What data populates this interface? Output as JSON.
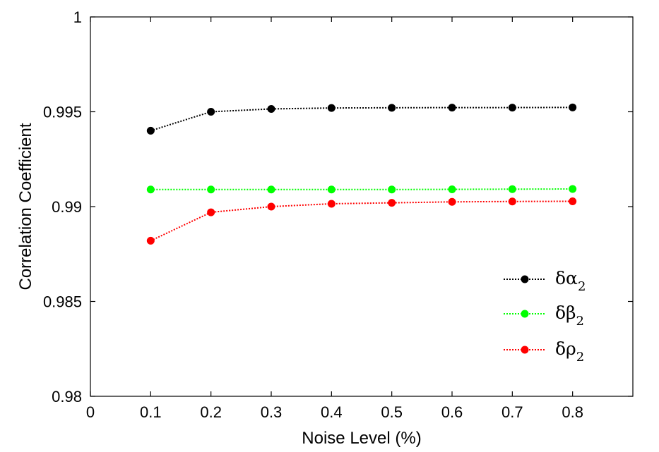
{
  "chart_data": {
    "type": "line",
    "xlabel": "Noise Level (%)",
    "ylabel": "Correlation Coefficient",
    "xlim": [
      0,
      0.9
    ],
    "ylim": [
      0.98,
      1.0
    ],
    "x_ticks": [
      0,
      0.1,
      0.2,
      0.3,
      0.4,
      0.5,
      0.6,
      0.7,
      0.8
    ],
    "x_tick_labels": [
      "0",
      "0.1",
      "0.2",
      "0.3",
      "0.4",
      "0.5",
      "0.6",
      "0.7",
      "0.8"
    ],
    "y_ticks": [
      0.98,
      0.985,
      0.99,
      0.995,
      1.0
    ],
    "y_tick_labels": [
      "0.98",
      "0.985",
      "0.99",
      "0.995",
      "1"
    ],
    "grid": false,
    "legend_position": "lower-right",
    "x": [
      0.1,
      0.2,
      0.3,
      0.4,
      0.5,
      0.6,
      0.7,
      0.8
    ],
    "series": [
      {
        "name": "δα",
        "name_subscript": "2",
        "color": "#000000",
        "values": [
          0.994,
          0.995,
          0.99515,
          0.9952,
          0.99521,
          0.99522,
          0.99522,
          0.99523
        ]
      },
      {
        "name": "δβ",
        "name_subscript": "2",
        "color": "#00ff00",
        "values": [
          0.9909,
          0.9909,
          0.9909,
          0.9909,
          0.9909,
          0.99091,
          0.99092,
          0.99093
        ]
      },
      {
        "name": "δρ",
        "name_subscript": "2",
        "color": "#ff0000",
        "values": [
          0.9882,
          0.9897,
          0.99,
          0.99015,
          0.9902,
          0.99025,
          0.99027,
          0.99028
        ]
      }
    ]
  }
}
